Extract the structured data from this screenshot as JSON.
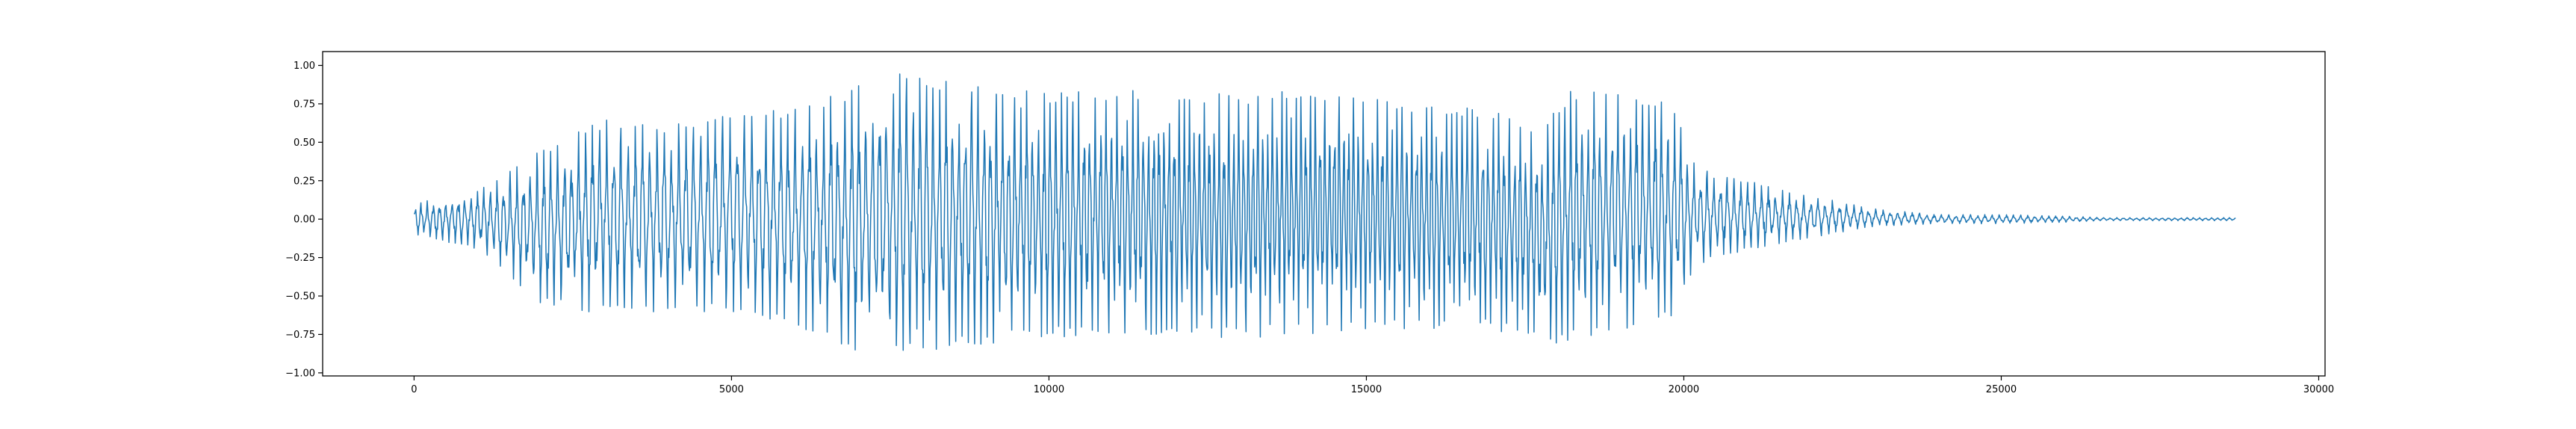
{
  "chart_data": {
    "type": "line",
    "title": "",
    "xlabel": "",
    "ylabel": "",
    "xlim": [
      -1440,
      30100
    ],
    "ylim": [
      -1.02,
      1.09
    ],
    "grid": false,
    "legend": "none",
    "x_ticks": [
      {
        "value": 0,
        "label": "0"
      },
      {
        "value": 5000,
        "label": "5000"
      },
      {
        "value": 10000,
        "label": "10000"
      },
      {
        "value": 15000,
        "label": "15000"
      },
      {
        "value": 20000,
        "label": "20000"
      },
      {
        "value": 25000,
        "label": "25000"
      },
      {
        "value": 30000,
        "label": "30000"
      }
    ],
    "y_ticks": [
      {
        "value": -1.0,
        "label": "−1.00"
      },
      {
        "value": -0.75,
        "label": "−0.75"
      },
      {
        "value": -0.5,
        "label": "−0.50"
      },
      {
        "value": -0.25,
        "label": "−0.25"
      },
      {
        "value": 0.0,
        "label": "0.00"
      },
      {
        "value": 0.25,
        "label": "0.25"
      },
      {
        "value": 0.5,
        "label": "0.50"
      },
      {
        "value": 0.75,
        "label": "0.75"
      },
      {
        "value": 1.0,
        "label": "1.00"
      }
    ],
    "series": [
      {
        "color": "#1f77b4",
        "x_start": 0,
        "x_end": 28700,
        "envelope_x": [
          0,
          1000,
          2000,
          3000,
          4000,
          5000,
          6000,
          6800,
          7500,
          8000,
          9000,
          10000,
          11000,
          12000,
          13000,
          14000,
          15000,
          16000,
          17000,
          17800,
          18200,
          19000,
          19800,
          20200,
          21000,
          22000,
          23000,
          24000,
          25000,
          26000,
          26600,
          28700
        ],
        "envelope_upper": [
          0.1,
          0.2,
          0.45,
          0.65,
          0.62,
          0.7,
          0.72,
          0.85,
          0.98,
          0.92,
          0.88,
          0.82,
          0.85,
          0.83,
          0.82,
          0.84,
          0.8,
          0.75,
          0.72,
          0.6,
          0.85,
          0.82,
          0.75,
          0.35,
          0.25,
          0.15,
          0.07,
          0.03,
          0.03,
          0.02,
          0.01,
          0.01
        ],
        "envelope_lower": [
          -0.1,
          -0.2,
          -0.55,
          -0.62,
          -0.62,
          -0.6,
          -0.7,
          -0.88,
          -0.92,
          -0.88,
          -0.82,
          -0.78,
          -0.76,
          -0.78,
          -0.78,
          -0.75,
          -0.72,
          -0.72,
          -0.72,
          -0.82,
          -0.8,
          -0.72,
          -0.65,
          -0.3,
          -0.2,
          -0.12,
          -0.05,
          -0.03,
          -0.03,
          -0.02,
          -0.01,
          -0.01
        ]
      }
    ]
  }
}
